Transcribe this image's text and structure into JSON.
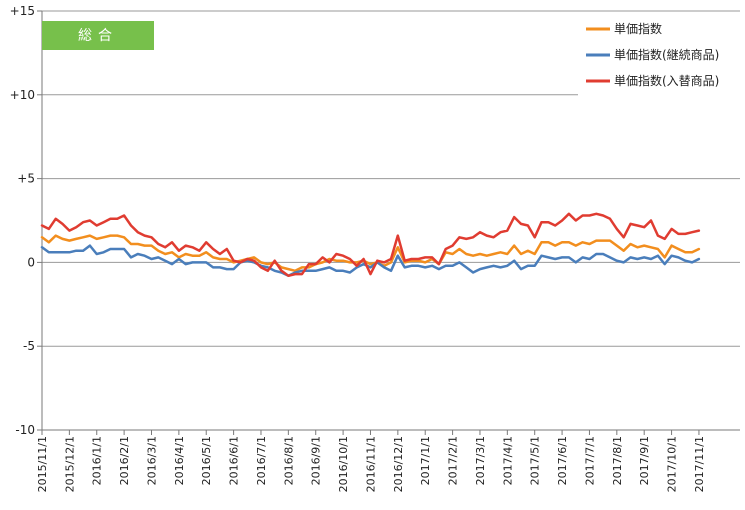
{
  "chart_data": {
    "type": "line",
    "badge": "総合",
    "ylim": [
      -10,
      15
    ],
    "y_ticks": [
      {
        "value": 15,
        "label": "+15"
      },
      {
        "value": 10,
        "label": "+10"
      },
      {
        "value": 5,
        "label": "+5"
      },
      {
        "value": 0,
        "label": "0"
      },
      {
        "value": -5,
        "label": "-5"
      },
      {
        "value": -10,
        "label": "-10"
      }
    ],
    "x_tick_labels": [
      "2015/11/1",
      "2015/12/1",
      "2016/1/1",
      "2016/2/1",
      "2016/3/1",
      "2016/4/1",
      "2016/5/1",
      "2016/6/1",
      "2016/7/1",
      "2016/8/1",
      "2016/9/1",
      "2016/10/1",
      "2016/11/1",
      "2016/12/1",
      "2017/1/1",
      "2017/2/1",
      "2017/3/1",
      "2017/4/1",
      "2017/5/1",
      "2017/6/1",
      "2017/7/1",
      "2017/8/1",
      "2017/9/1",
      "2017/10/1",
      "2017/11/1"
    ],
    "x_range": [
      0,
      25.5
    ],
    "grid": "horizontal",
    "legend_position": "top-right",
    "series": [
      {
        "name": "単価指数",
        "color": "#f28e1e",
        "points": [
          [
            0.0,
            1.5
          ],
          [
            0.25,
            1.2
          ],
          [
            0.5,
            1.6
          ],
          [
            0.75,
            1.4
          ],
          [
            1.0,
            1.3
          ],
          [
            1.25,
            1.4
          ],
          [
            1.5,
            1.5
          ],
          [
            1.75,
            1.6
          ],
          [
            2.0,
            1.4
          ],
          [
            2.25,
            1.5
          ],
          [
            2.5,
            1.6
          ],
          [
            2.75,
            1.6
          ],
          [
            3.0,
            1.5
          ],
          [
            3.25,
            1.1
          ],
          [
            3.5,
            1.1
          ],
          [
            3.75,
            1.0
          ],
          [
            4.0,
            1.0
          ],
          [
            4.25,
            0.7
          ],
          [
            4.5,
            0.5
          ],
          [
            4.75,
            0.6
          ],
          [
            5.0,
            0.3
          ],
          [
            5.25,
            0.5
          ],
          [
            5.5,
            0.4
          ],
          [
            5.75,
            0.4
          ],
          [
            6.0,
            0.6
          ],
          [
            6.25,
            0.3
          ],
          [
            6.5,
            0.2
          ],
          [
            6.75,
            0.2
          ],
          [
            7.0,
            0.0
          ],
          [
            7.25,
            0.1
          ],
          [
            7.5,
            0.2
          ],
          [
            7.75,
            0.3
          ],
          [
            8.0,
            0.0
          ],
          [
            8.25,
            -0.1
          ],
          [
            8.5,
            0.0
          ],
          [
            8.75,
            -0.3
          ],
          [
            9.0,
            -0.4
          ],
          [
            9.25,
            -0.5
          ],
          [
            9.5,
            -0.3
          ],
          [
            9.75,
            -0.3
          ],
          [
            10.0,
            -0.1
          ],
          [
            10.25,
            0.0
          ],
          [
            10.5,
            0.2
          ],
          [
            10.75,
            0.1
          ],
          [
            11.0,
            0.1
          ],
          [
            11.25,
            0.0
          ],
          [
            11.5,
            0.0
          ],
          [
            11.75,
            0.1
          ],
          [
            12.0,
            -0.1
          ],
          [
            12.25,
            0.0
          ],
          [
            12.5,
            -0.2
          ],
          [
            12.75,
            0.0
          ],
          [
            13.0,
            0.9
          ],
          [
            13.25,
            0.0
          ],
          [
            13.5,
            0.1
          ],
          [
            13.75,
            0.1
          ],
          [
            14.0,
            0.0
          ],
          [
            14.25,
            0.2
          ],
          [
            14.5,
            -0.1
          ],
          [
            14.75,
            0.6
          ],
          [
            15.0,
            0.5
          ],
          [
            15.25,
            0.8
          ],
          [
            15.5,
            0.5
          ],
          [
            15.75,
            0.4
          ],
          [
            16.0,
            0.5
          ],
          [
            16.25,
            0.4
          ],
          [
            16.5,
            0.5
          ],
          [
            16.75,
            0.6
          ],
          [
            17.0,
            0.5
          ],
          [
            17.25,
            1.0
          ],
          [
            17.5,
            0.5
          ],
          [
            17.75,
            0.7
          ],
          [
            18.0,
            0.5
          ],
          [
            18.25,
            1.2
          ],
          [
            18.5,
            1.2
          ],
          [
            18.75,
            1.0
          ],
          [
            19.0,
            1.2
          ],
          [
            19.25,
            1.2
          ],
          [
            19.5,
            1.0
          ],
          [
            19.75,
            1.2
          ],
          [
            20.0,
            1.1
          ],
          [
            20.25,
            1.3
          ],
          [
            20.5,
            1.3
          ],
          [
            20.75,
            1.3
          ],
          [
            21.0,
            1.0
          ],
          [
            21.25,
            0.7
          ],
          [
            21.5,
            1.1
          ],
          [
            21.75,
            0.9
          ],
          [
            22.0,
            1.0
          ],
          [
            22.25,
            0.9
          ],
          [
            22.5,
            0.8
          ],
          [
            22.75,
            0.3
          ],
          [
            23.0,
            1.0
          ],
          [
            23.25,
            0.8
          ],
          [
            23.5,
            0.6
          ],
          [
            23.75,
            0.6
          ],
          [
            24.0,
            0.8
          ]
        ]
      },
      {
        "name": "単価指数(継続商品)",
        "color": "#4a7ebb",
        "points": [
          [
            0.0,
            0.9
          ],
          [
            0.25,
            0.6
          ],
          [
            0.5,
            0.6
          ],
          [
            0.75,
            0.6
          ],
          [
            1.0,
            0.6
          ],
          [
            1.25,
            0.7
          ],
          [
            1.5,
            0.7
          ],
          [
            1.75,
            1.0
          ],
          [
            2.0,
            0.5
          ],
          [
            2.25,
            0.6
          ],
          [
            2.5,
            0.8
          ],
          [
            2.75,
            0.8
          ],
          [
            3.0,
            0.8
          ],
          [
            3.25,
            0.3
          ],
          [
            3.5,
            0.5
          ],
          [
            3.75,
            0.4
          ],
          [
            4.0,
            0.2
          ],
          [
            4.25,
            0.3
          ],
          [
            4.5,
            0.1
          ],
          [
            4.75,
            -0.1
          ],
          [
            5.0,
            0.2
          ],
          [
            5.25,
            -0.1
          ],
          [
            5.5,
            0.0
          ],
          [
            5.75,
            0.0
          ],
          [
            6.0,
            0.0
          ],
          [
            6.25,
            -0.3
          ],
          [
            6.5,
            -0.3
          ],
          [
            6.75,
            -0.4
          ],
          [
            7.0,
            -0.4
          ],
          [
            7.25,
            0.0
          ],
          [
            7.5,
            0.1
          ],
          [
            7.75,
            0.0
          ],
          [
            8.0,
            -0.2
          ],
          [
            8.25,
            -0.3
          ],
          [
            8.5,
            -0.5
          ],
          [
            8.75,
            -0.6
          ],
          [
            9.0,
            -0.8
          ],
          [
            9.25,
            -0.6
          ],
          [
            9.5,
            -0.5
          ],
          [
            9.75,
            -0.5
          ],
          [
            10.0,
            -0.5
          ],
          [
            10.25,
            -0.4
          ],
          [
            10.5,
            -0.3
          ],
          [
            10.75,
            -0.5
          ],
          [
            11.0,
            -0.5
          ],
          [
            11.25,
            -0.6
          ],
          [
            11.5,
            -0.3
          ],
          [
            11.75,
            -0.1
          ],
          [
            12.0,
            -0.3
          ],
          [
            12.25,
            0.0
          ],
          [
            12.5,
            -0.3
          ],
          [
            12.75,
            -0.5
          ],
          [
            13.0,
            0.4
          ],
          [
            13.25,
            -0.3
          ],
          [
            13.5,
            -0.2
          ],
          [
            13.75,
            -0.2
          ],
          [
            14.0,
            -0.3
          ],
          [
            14.25,
            -0.2
          ],
          [
            14.5,
            -0.4
          ],
          [
            14.75,
            -0.2
          ],
          [
            15.0,
            -0.2
          ],
          [
            15.25,
            0.0
          ],
          [
            15.5,
            -0.3
          ],
          [
            15.75,
            -0.6
          ],
          [
            16.0,
            -0.4
          ],
          [
            16.25,
            -0.3
          ],
          [
            16.5,
            -0.2
          ],
          [
            16.75,
            -0.3
          ],
          [
            17.0,
            -0.2
          ],
          [
            17.25,
            0.1
          ],
          [
            17.5,
            -0.4
          ],
          [
            17.75,
            -0.2
          ],
          [
            18.0,
            -0.2
          ],
          [
            18.25,
            0.4
          ],
          [
            18.5,
            0.3
          ],
          [
            18.75,
            0.2
          ],
          [
            19.0,
            0.3
          ],
          [
            19.25,
            0.3
          ],
          [
            19.5,
            0.0
          ],
          [
            19.75,
            0.3
          ],
          [
            20.0,
            0.2
          ],
          [
            20.25,
            0.5
          ],
          [
            20.5,
            0.5
          ],
          [
            20.75,
            0.3
          ],
          [
            21.0,
            0.1
          ],
          [
            21.25,
            0.0
          ],
          [
            21.5,
            0.3
          ],
          [
            21.75,
            0.2
          ],
          [
            22.0,
            0.3
          ],
          [
            22.25,
            0.2
          ],
          [
            22.5,
            0.4
          ],
          [
            22.75,
            -0.1
          ],
          [
            23.0,
            0.4
          ],
          [
            23.25,
            0.3
          ],
          [
            23.5,
            0.1
          ],
          [
            23.75,
            0.0
          ],
          [
            24.0,
            0.2
          ]
        ]
      },
      {
        "name": "単価指数(入替商品)",
        "color": "#e03c31",
        "points": [
          [
            0.0,
            2.2
          ],
          [
            0.25,
            2.0
          ],
          [
            0.5,
            2.6
          ],
          [
            0.75,
            2.3
          ],
          [
            1.0,
            1.9
          ],
          [
            1.25,
            2.1
          ],
          [
            1.5,
            2.4
          ],
          [
            1.75,
            2.5
          ],
          [
            2.0,
            2.2
          ],
          [
            2.25,
            2.4
          ],
          [
            2.5,
            2.6
          ],
          [
            2.75,
            2.6
          ],
          [
            3.0,
            2.8
          ],
          [
            3.25,
            2.2
          ],
          [
            3.5,
            1.8
          ],
          [
            3.75,
            1.6
          ],
          [
            4.0,
            1.5
          ],
          [
            4.25,
            1.1
          ],
          [
            4.5,
            0.9
          ],
          [
            4.75,
            1.2
          ],
          [
            5.0,
            0.7
          ],
          [
            5.25,
            1.0
          ],
          [
            5.5,
            0.9
          ],
          [
            5.75,
            0.7
          ],
          [
            6.0,
            1.2
          ],
          [
            6.25,
            0.8
          ],
          [
            6.5,
            0.5
          ],
          [
            6.75,
            0.8
          ],
          [
            7.0,
            0.1
          ],
          [
            7.25,
            0.0
          ],
          [
            7.5,
            0.2
          ],
          [
            7.75,
            0.1
          ],
          [
            8.0,
            -0.3
          ],
          [
            8.25,
            -0.5
          ],
          [
            8.5,
            0.1
          ],
          [
            8.75,
            -0.5
          ],
          [
            9.0,
            -0.8
          ],
          [
            9.25,
            -0.7
          ],
          [
            9.5,
            -0.7
          ],
          [
            9.75,
            -0.1
          ],
          [
            10.0,
            -0.1
          ],
          [
            10.25,
            0.3
          ],
          [
            10.5,
            0.0
          ],
          [
            10.75,
            0.5
          ],
          [
            11.0,
            0.4
          ],
          [
            11.25,
            0.2
          ],
          [
            11.5,
            -0.2
          ],
          [
            11.75,
            0.2
          ],
          [
            12.0,
            -0.7
          ],
          [
            12.25,
            0.1
          ],
          [
            12.5,
            0.0
          ],
          [
            12.75,
            0.2
          ],
          [
            13.0,
            1.6
          ],
          [
            13.25,
            0.1
          ],
          [
            13.5,
            0.2
          ],
          [
            13.75,
            0.2
          ],
          [
            14.0,
            0.3
          ],
          [
            14.25,
            0.3
          ],
          [
            14.5,
            -0.1
          ],
          [
            14.75,
            0.8
          ],
          [
            15.0,
            1.0
          ],
          [
            15.25,
            1.5
          ],
          [
            15.5,
            1.4
          ],
          [
            15.75,
            1.5
          ],
          [
            16.0,
            1.8
          ],
          [
            16.25,
            1.6
          ],
          [
            16.5,
            1.5
          ],
          [
            16.75,
            1.8
          ],
          [
            17.0,
            1.9
          ],
          [
            17.25,
            2.7
          ],
          [
            17.5,
            2.3
          ],
          [
            17.75,
            2.2
          ],
          [
            18.0,
            1.5
          ],
          [
            18.25,
            2.4
          ],
          [
            18.5,
            2.4
          ],
          [
            18.75,
            2.2
          ],
          [
            19.0,
            2.5
          ],
          [
            19.25,
            2.9
          ],
          [
            19.5,
            2.5
          ],
          [
            19.75,
            2.8
          ],
          [
            20.0,
            2.8
          ],
          [
            20.25,
            2.9
          ],
          [
            20.5,
            2.8
          ],
          [
            20.75,
            2.6
          ],
          [
            21.0,
            2.0
          ],
          [
            21.25,
            1.5
          ],
          [
            21.5,
            2.3
          ],
          [
            21.75,
            2.2
          ],
          [
            22.0,
            2.1
          ],
          [
            22.25,
            2.5
          ],
          [
            22.5,
            1.6
          ],
          [
            22.75,
            1.4
          ],
          [
            23.0,
            2.0
          ],
          [
            23.25,
            1.7
          ],
          [
            23.5,
            1.7
          ],
          [
            23.75,
            1.8
          ],
          [
            24.0,
            1.9
          ]
        ]
      }
    ]
  }
}
